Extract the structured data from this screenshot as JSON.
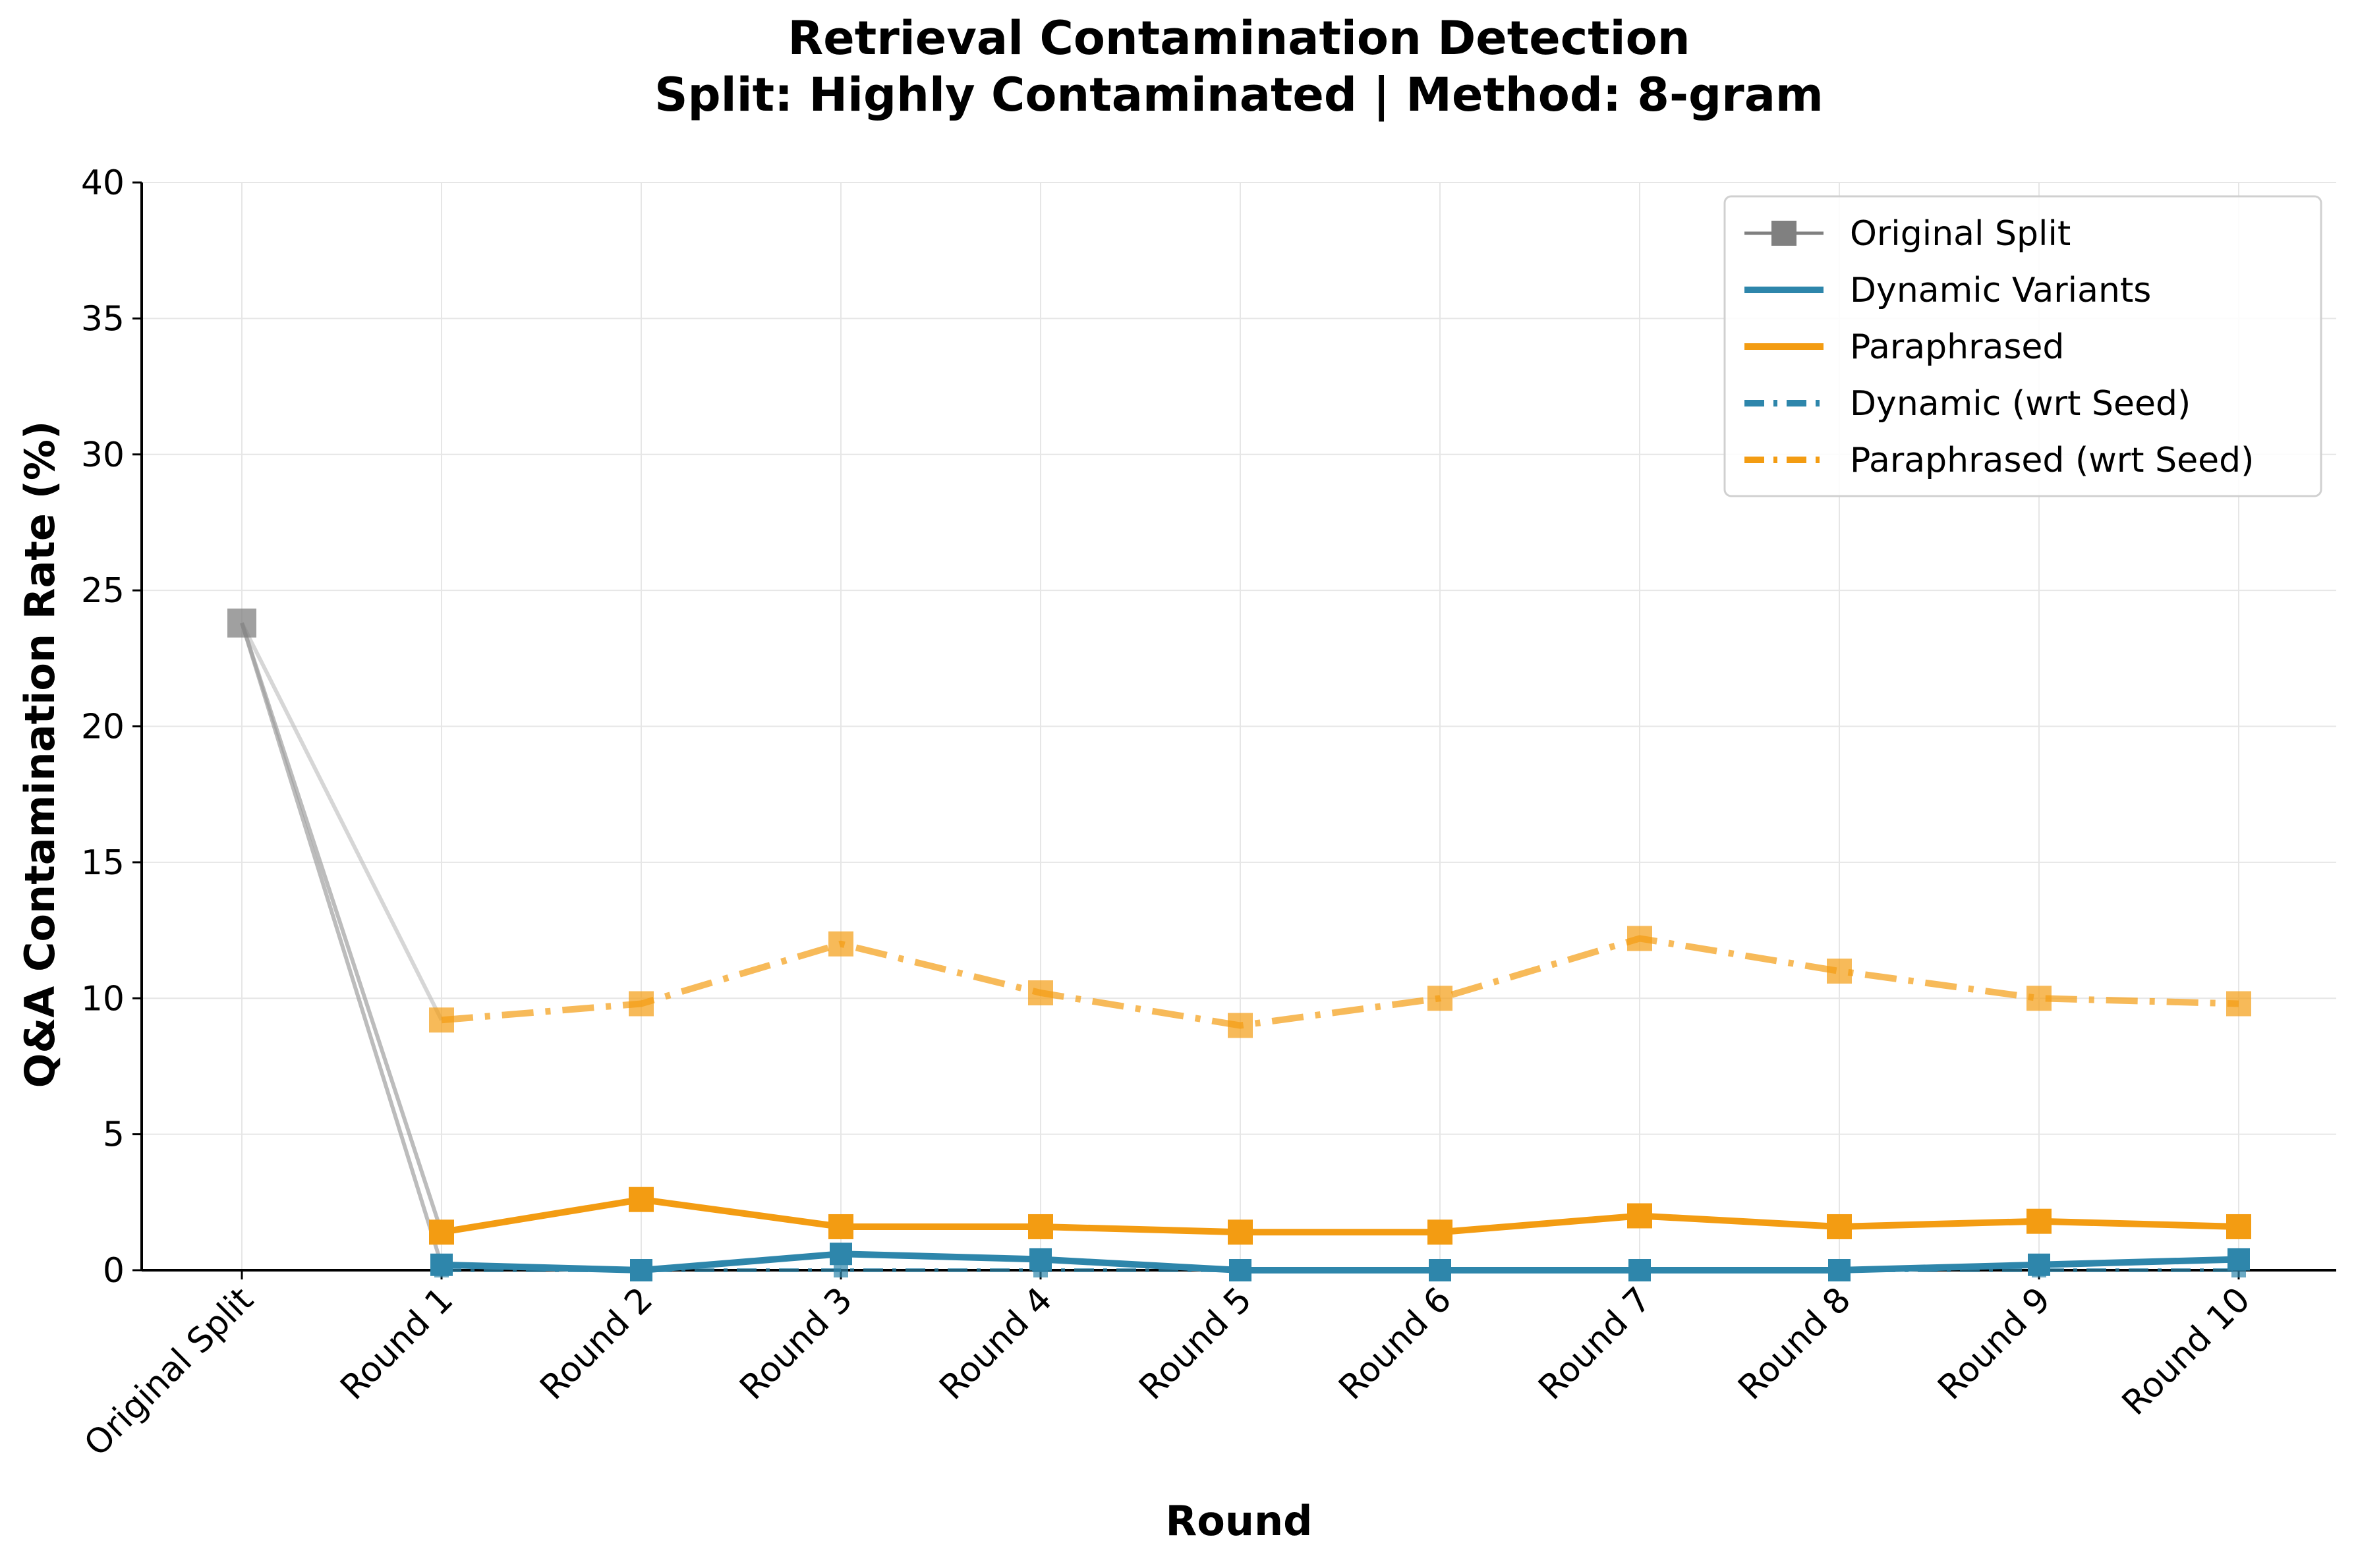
{
  "chart_data": {
    "type": "line",
    "title_line1": "Retrieval Contamination Detection",
    "title_line2": "Split: Highly Contaminated | Method: 8-gram",
    "xlabel": "Round",
    "ylabel": "Q&A Contamination Rate (%)",
    "categories": [
      "Original Split",
      "Round 1",
      "Round 2",
      "Round 3",
      "Round 4",
      "Round 5",
      "Round 6",
      "Round 7",
      "Round 8",
      "Round 9",
      "Round 10"
    ],
    "ylim": [
      0,
      40
    ],
    "yticks": [
      0,
      5,
      10,
      15,
      20,
      25,
      30,
      35,
      40
    ],
    "grid": true,
    "legend_position": "top-right",
    "original_split_value": 23.8,
    "series": [
      {
        "name": "Original Split",
        "color": "#808080",
        "style": "solid-square-marker",
        "values": [
          23.8,
          null,
          null,
          null,
          null,
          null,
          null,
          null,
          null,
          null,
          null
        ]
      },
      {
        "name": "Dynamic Variants",
        "color": "#2E86AB",
        "style": "solid",
        "values": [
          null,
          0.2,
          0.0,
          0.6,
          0.4,
          0.0,
          0.0,
          0.0,
          0.0,
          0.2,
          0.4
        ]
      },
      {
        "name": "Paraphrased",
        "color": "#F39C12",
        "style": "solid",
        "values": [
          null,
          1.4,
          2.6,
          1.6,
          1.6,
          1.4,
          1.4,
          2.0,
          1.6,
          1.8,
          1.6
        ]
      },
      {
        "name": "Dynamic (wrt Seed)",
        "color": "#2E86AB",
        "style": "dashdot",
        "values": [
          null,
          0.0,
          0.0,
          0.0,
          0.0,
          0.0,
          0.0,
          0.0,
          0.0,
          0.0,
          0.0
        ]
      },
      {
        "name": "Paraphrased (wrt Seed)",
        "color": "#F39C12",
        "style": "dashdot",
        "values": [
          null,
          9.2,
          9.8,
          12.0,
          10.2,
          9.0,
          10.0,
          12.2,
          11.0,
          10.0,
          9.8
        ]
      }
    ]
  }
}
